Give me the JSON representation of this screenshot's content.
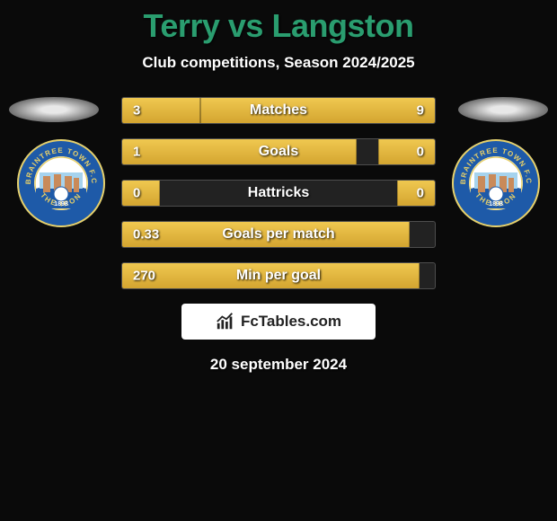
{
  "title": "Terry vs Langston",
  "subtitle": "Club competitions, Season 2024/2025",
  "date": "20 september 2024",
  "brand_logo_text": "FcTables.com",
  "colors": {
    "title_color": "#2a9d6f",
    "bar_fill_top": "#f0c850",
    "bar_fill_bottom": "#d4a530",
    "track_bg": "rgba(50,50,50,0.6)",
    "track_border": "rgba(120,120,120,0.5)",
    "crest_outer": "#1e5aa8",
    "crest_ring": "#e8d068",
    "crest_inner": "#ffffff",
    "crest_sky": "#a6d3ee"
  },
  "crest_text": "BRAINTREE TOWN F.C",
  "crest_motto": "THE IRON",
  "crest_year": "1898",
  "stats": [
    {
      "label": "Matches",
      "left_val": "3",
      "right_val": "9",
      "left_pct": 25,
      "right_pct": 75
    },
    {
      "label": "Goals",
      "left_val": "1",
      "right_val": "0",
      "left_pct": 75,
      "right_pct": 18
    },
    {
      "label": "Hattricks",
      "left_val": "0",
      "right_val": "0",
      "left_pct": 12,
      "right_pct": 12
    },
    {
      "label": "Goals per match",
      "left_val": "0.33",
      "right_val": "",
      "left_pct": 92,
      "right_pct": 0
    },
    {
      "label": "Min per goal",
      "left_val": "270",
      "right_val": "",
      "left_pct": 95,
      "right_pct": 0
    }
  ]
}
